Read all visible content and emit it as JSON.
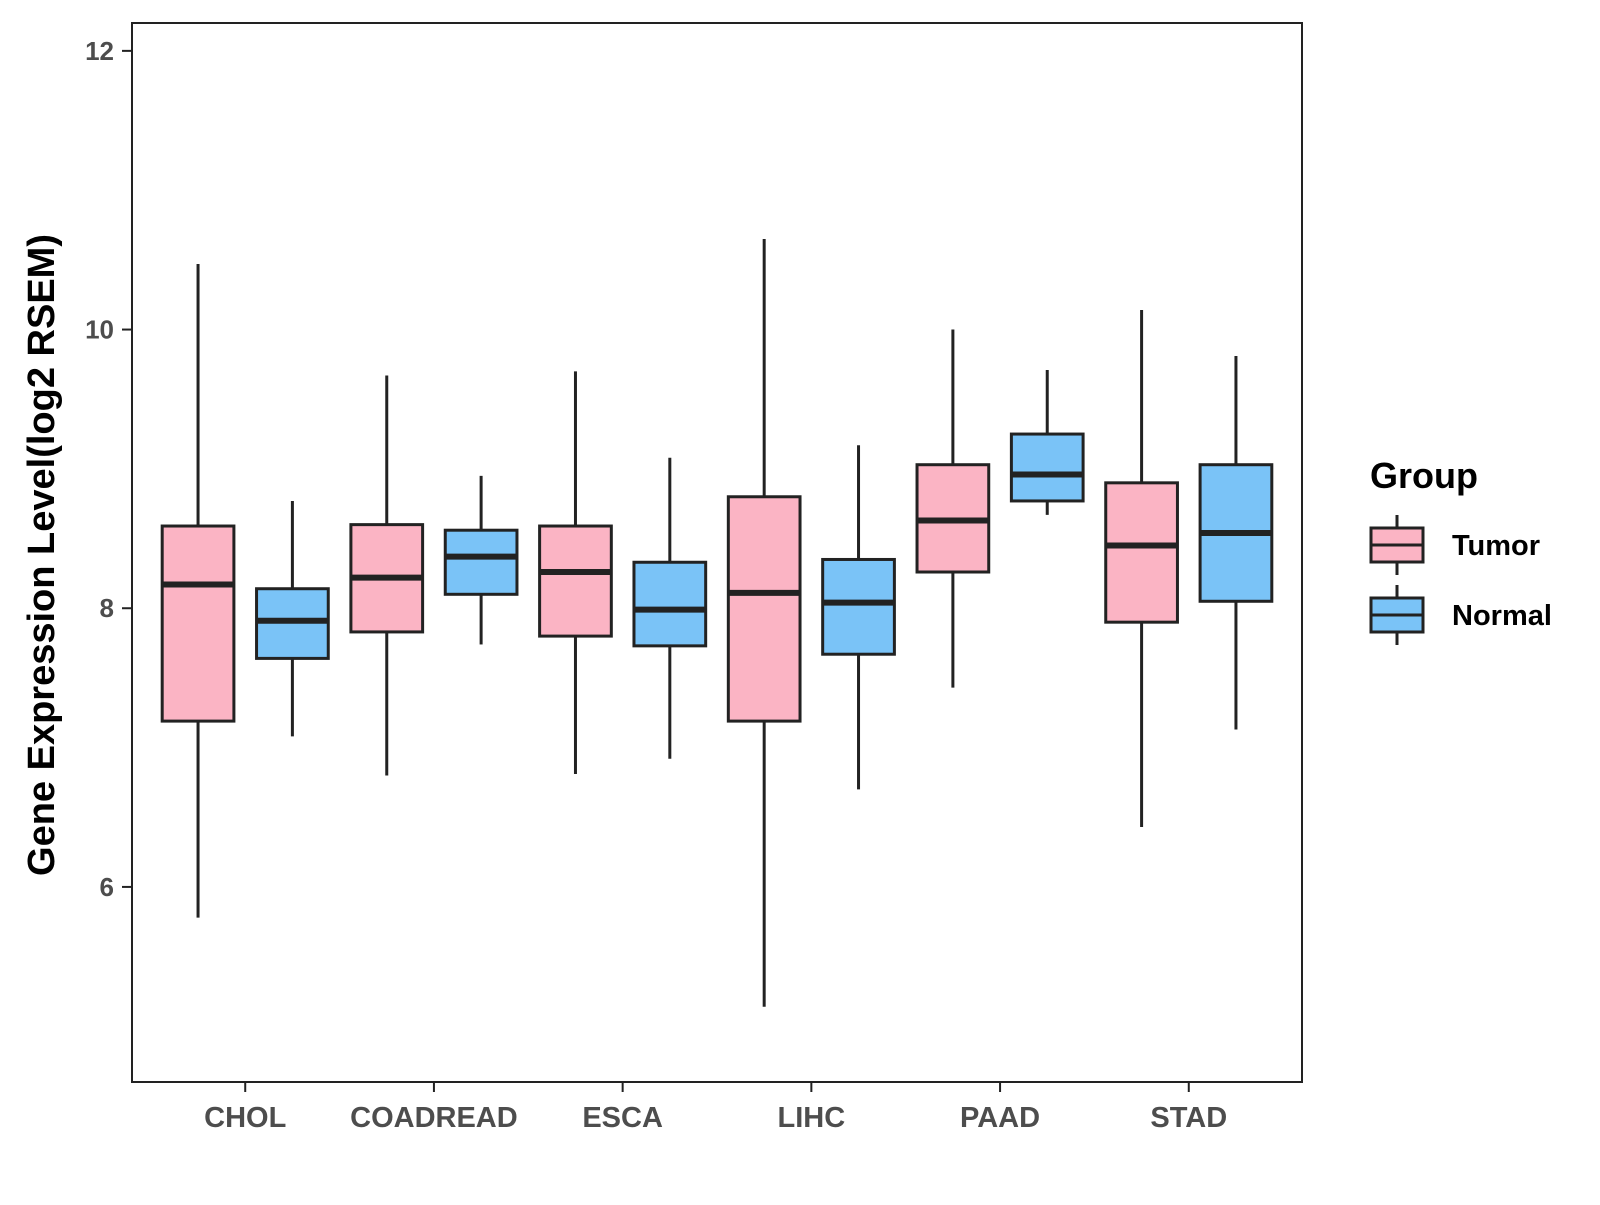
{
  "chart_data": {
    "type": "box",
    "title": "",
    "xlabel": "",
    "ylabel": "Gene Expression Level(log2 RSEM)",
    "ylim": [
      4.6,
      12.2
    ],
    "yticks": [
      6,
      8,
      10,
      12
    ],
    "ytick_labels": [
      "6",
      "8",
      "10",
      "12"
    ],
    "grid": false,
    "categories": [
      "CHOL",
      "COADREAD",
      "ESCA",
      "LIHC",
      "PAAD",
      "STAD"
    ],
    "legend": {
      "title": "Group",
      "position": "right",
      "entries": [
        {
          "label": "Tumor",
          "color": "#FBB4C4"
        },
        {
          "label": "Normal",
          "color": "#7AC3F7"
        }
      ]
    },
    "series": [
      {
        "name": "Tumor",
        "color": "#FBB4C4",
        "boxes": [
          {
            "min": 5.78,
            "q1": 7.19,
            "median": 8.17,
            "q3": 8.59,
            "max": 10.47
          },
          {
            "min": 6.8,
            "q1": 7.83,
            "median": 8.22,
            "q3": 8.6,
            "max": 9.67
          },
          {
            "min": 6.81,
            "q1": 7.8,
            "median": 8.26,
            "q3": 8.59,
            "max": 9.7
          },
          {
            "min": 5.14,
            "q1": 7.19,
            "median": 8.11,
            "q3": 8.8,
            "max": 10.65
          },
          {
            "min": 7.43,
            "q1": 8.26,
            "median": 8.63,
            "q3": 9.03,
            "max": 10.0
          },
          {
            "min": 6.43,
            "q1": 7.9,
            "median": 8.45,
            "q3": 8.9,
            "max": 10.14
          }
        ]
      },
      {
        "name": "Normal",
        "color": "#7AC3F7",
        "boxes": [
          {
            "min": 7.08,
            "q1": 7.64,
            "median": 7.91,
            "q3": 8.14,
            "max": 8.77
          },
          {
            "min": 7.74,
            "q1": 8.1,
            "median": 8.37,
            "q3": 8.56,
            "max": 8.95
          },
          {
            "min": 6.92,
            "q1": 7.73,
            "median": 7.99,
            "q3": 8.33,
            "max": 9.08
          },
          {
            "min": 6.7,
            "q1": 7.67,
            "median": 8.04,
            "q3": 8.35,
            "max": 9.17
          },
          {
            "min": 8.67,
            "q1": 8.77,
            "median": 8.96,
            "q3": 9.25,
            "max": 9.71
          },
          {
            "min": 7.13,
            "q1": 8.05,
            "median": 8.54,
            "q3": 9.03,
            "max": 9.81
          }
        ]
      }
    ]
  }
}
